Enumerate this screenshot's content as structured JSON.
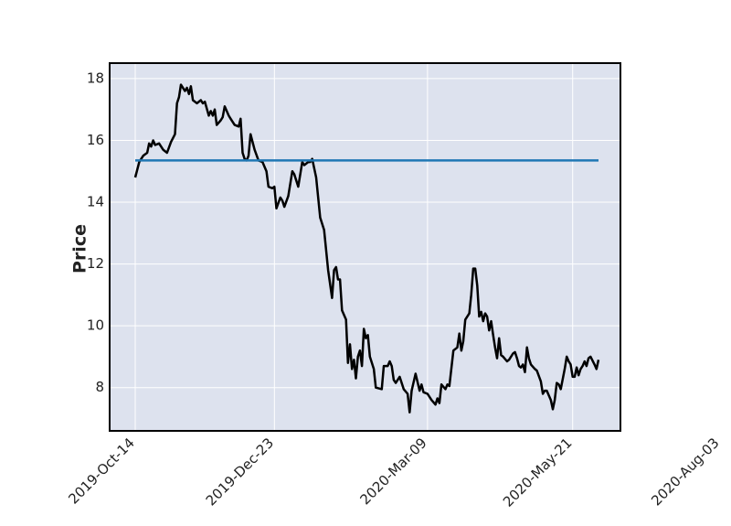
{
  "chart_data": {
    "type": "line",
    "title": "",
    "xlabel": "",
    "ylabel": "Price",
    "ylim": [
      6.6,
      18.5
    ],
    "y_ticks": [
      8,
      10,
      12,
      14,
      16,
      18
    ],
    "x_ticks": [
      "2019-Oct-14",
      "2019-Dec-23",
      "2020-Mar-09",
      "2020-May-21",
      "2020-Aug-03"
    ],
    "grid": true,
    "background_color": "#dde2ee",
    "series": [
      {
        "color": "#000000",
        "style": "solid",
        "points": [
          [
            "2019-Oct-14",
            14.8
          ],
          [
            "2019-Oct-16",
            15.3
          ],
          [
            "2019-Oct-18",
            15.5
          ],
          [
            "2019-Oct-20",
            15.6
          ],
          [
            "2019-Oct-21",
            15.9
          ],
          [
            "2019-Oct-22",
            15.8
          ],
          [
            "2019-Oct-23",
            16.0
          ],
          [
            "2019-Oct-24",
            15.85
          ],
          [
            "2019-Oct-26",
            15.9
          ],
          [
            "2019-Oct-28",
            15.7
          ],
          [
            "2019-Oct-30",
            15.6
          ],
          [
            "2019-Nov-01",
            15.95
          ],
          [
            "2019-Nov-03",
            16.2
          ],
          [
            "2019-Nov-04",
            17.2
          ],
          [
            "2019-Nov-05",
            17.4
          ],
          [
            "2019-Nov-06",
            17.8
          ],
          [
            "2019-Nov-08",
            17.6
          ],
          [
            "2019-Nov-09",
            17.7
          ],
          [
            "2019-Nov-10",
            17.5
          ],
          [
            "2019-Nov-11",
            17.75
          ],
          [
            "2019-Nov-12",
            17.3
          ],
          [
            "2019-Nov-14",
            17.2
          ],
          [
            "2019-Nov-16",
            17.3
          ],
          [
            "2019-Nov-17",
            17.2
          ],
          [
            "2019-Nov-18",
            17.25
          ],
          [
            "2019-Nov-20",
            16.8
          ],
          [
            "2019-Nov-21",
            16.95
          ],
          [
            "2019-Nov-22",
            16.8
          ],
          [
            "2019-Nov-23",
            17.0
          ],
          [
            "2019-Nov-24",
            16.5
          ],
          [
            "2019-Nov-26",
            16.65
          ],
          [
            "2019-Nov-27",
            16.75
          ],
          [
            "2019-Nov-28",
            17.1
          ],
          [
            "2019-Nov-30",
            16.8
          ],
          [
            "2019-Dec-01",
            16.7
          ],
          [
            "2019-Dec-03",
            16.5
          ],
          [
            "2019-Dec-05",
            16.45
          ],
          [
            "2019-Dec-06",
            16.7
          ],
          [
            "2019-Dec-07",
            15.6
          ],
          [
            "2019-Dec-08",
            15.4
          ],
          [
            "2019-Dec-09",
            15.35
          ],
          [
            "2019-Dec-10",
            15.5
          ],
          [
            "2019-Dec-11",
            16.2
          ],
          [
            "2019-Dec-13",
            15.7
          ],
          [
            "2019-Dec-15",
            15.35
          ],
          [
            "2019-Dec-17",
            15.3
          ],
          [
            "2019-Dec-19",
            15.0
          ],
          [
            "2019-Dec-20",
            14.5
          ],
          [
            "2019-Dec-22",
            14.45
          ],
          [
            "2019-Dec-23",
            14.5
          ],
          [
            "2019-Dec-24",
            13.8
          ],
          [
            "2019-Dec-26",
            14.15
          ],
          [
            "2019-Dec-27",
            14.05
          ],
          [
            "2019-Dec-28",
            13.85
          ],
          [
            "2019-Dec-30",
            14.2
          ],
          [
            "2020-Jan-01",
            15.0
          ],
          [
            "2020-Jan-02",
            14.9
          ],
          [
            "2020-Jan-04",
            14.5
          ],
          [
            "2020-Jan-06",
            15.3
          ],
          [
            "2020-Jan-07",
            15.2
          ],
          [
            "2020-Jan-09",
            15.3
          ],
          [
            "2020-Jan-10",
            15.3
          ],
          [
            "2020-Jan-11",
            15.4
          ],
          [
            "2020-Jan-13",
            14.8
          ],
          [
            "2020-Jan-15",
            13.5
          ],
          [
            "2020-Jan-17",
            13.1
          ],
          [
            "2020-Jan-19",
            11.8
          ],
          [
            "2020-Jan-21",
            10.9
          ],
          [
            "2020-Jan-22",
            11.8
          ],
          [
            "2020-Jan-23",
            11.9
          ],
          [
            "2020-Jan-24",
            11.5
          ],
          [
            "2020-Jan-25",
            11.5
          ],
          [
            "2020-Jan-26",
            10.5
          ],
          [
            "2020-Jan-28",
            10.2
          ],
          [
            "2020-Jan-29",
            8.8
          ],
          [
            "2020-Jan-30",
            9.4
          ],
          [
            "2020-Jan-31",
            8.6
          ],
          [
            "2020-Feb-01",
            8.9
          ],
          [
            "2020-Feb-02",
            8.3
          ],
          [
            "2020-Feb-03",
            9.0
          ],
          [
            "2020-Feb-04",
            9.2
          ],
          [
            "2020-Feb-05",
            8.7
          ],
          [
            "2020-Feb-06",
            9.9
          ],
          [
            "2020-Feb-07",
            9.6
          ],
          [
            "2020-Feb-08",
            9.7
          ],
          [
            "2020-Feb-09",
            9.0
          ],
          [
            "2020-Feb-11",
            8.6
          ],
          [
            "2020-Feb-12",
            8.0
          ],
          [
            "2020-Feb-15",
            7.95
          ],
          [
            "2020-Feb-16",
            8.7
          ],
          [
            "2020-Feb-18",
            8.7
          ],
          [
            "2020-Feb-19",
            8.85
          ],
          [
            "2020-Feb-20",
            8.7
          ],
          [
            "2020-Feb-21",
            8.25
          ],
          [
            "2020-Feb-22",
            8.15
          ],
          [
            "2020-Feb-24",
            8.35
          ],
          [
            "2020-Feb-26",
            7.95
          ],
          [
            "2020-Feb-28",
            7.8
          ],
          [
            "2020-Feb-29",
            7.2
          ],
          [
            "2020-Mar-01",
            7.9
          ],
          [
            "2020-Mar-03",
            8.45
          ],
          [
            "2020-Mar-05",
            7.9
          ],
          [
            "2020-Mar-06",
            8.1
          ],
          [
            "2020-Mar-07",
            7.85
          ],
          [
            "2020-Mar-09",
            7.8
          ],
          [
            "2020-Mar-11",
            7.6
          ],
          [
            "2020-Mar-13",
            7.45
          ],
          [
            "2020-Mar-14",
            7.65
          ],
          [
            "2020-Mar-15",
            7.5
          ],
          [
            "2020-Mar-16",
            8.1
          ],
          [
            "2020-Mar-18",
            7.95
          ],
          [
            "2020-Mar-19",
            8.1
          ],
          [
            "2020-Mar-20",
            8.05
          ],
          [
            "2020-Mar-22",
            9.2
          ],
          [
            "2020-Mar-24",
            9.3
          ],
          [
            "2020-Mar-25",
            9.75
          ],
          [
            "2020-Mar-26",
            9.2
          ],
          [
            "2020-Mar-27",
            9.5
          ],
          [
            "2020-Mar-28",
            10.2
          ],
          [
            "2020-Mar-30",
            10.4
          ],
          [
            "2020-Mar-31",
            11.0
          ],
          [
            "2020-Apr-01",
            11.85
          ],
          [
            "2020-Apr-02",
            11.85
          ],
          [
            "2020-Apr-03",
            11.3
          ],
          [
            "2020-Apr-04",
            10.3
          ],
          [
            "2020-Apr-05",
            10.45
          ],
          [
            "2020-Apr-06",
            10.15
          ],
          [
            "2020-Apr-07",
            10.4
          ],
          [
            "2020-Apr-08",
            10.3
          ],
          [
            "2020-Apr-09",
            9.85
          ],
          [
            "2020-Apr-10",
            10.15
          ],
          [
            "2020-Apr-11",
            9.7
          ],
          [
            "2020-Apr-12",
            9.3
          ],
          [
            "2020-Apr-13",
            8.95
          ],
          [
            "2020-Apr-14",
            9.6
          ],
          [
            "2020-Apr-15",
            9.05
          ],
          [
            "2020-Apr-16",
            9.0
          ],
          [
            "2020-Apr-18",
            8.85
          ],
          [
            "2020-Apr-19",
            8.9
          ],
          [
            "2020-Apr-21",
            9.1
          ],
          [
            "2020-Apr-22",
            9.15
          ],
          [
            "2020-Apr-23",
            8.95
          ],
          [
            "2020-Apr-24",
            8.7
          ],
          [
            "2020-Apr-25",
            8.65
          ],
          [
            "2020-Apr-26",
            8.75
          ],
          [
            "2020-Apr-27",
            8.5
          ],
          [
            "2020-Apr-28",
            9.3
          ],
          [
            "2020-Apr-29",
            8.95
          ],
          [
            "2020-Apr-30",
            8.75
          ],
          [
            "2020-May-02",
            8.6
          ],
          [
            "2020-May-03",
            8.55
          ],
          [
            "2020-May-05",
            8.2
          ],
          [
            "2020-May-06",
            7.8
          ],
          [
            "2020-May-07",
            7.9
          ],
          [
            "2020-May-08",
            7.9
          ],
          [
            "2020-May-10",
            7.6
          ],
          [
            "2020-May-11",
            7.3
          ],
          [
            "2020-May-12",
            7.6
          ],
          [
            "2020-May-13",
            8.15
          ],
          [
            "2020-May-14",
            8.1
          ],
          [
            "2020-May-15",
            7.95
          ],
          [
            "2020-May-17",
            8.6
          ],
          [
            "2020-May-18",
            9.0
          ],
          [
            "2020-May-19",
            8.85
          ],
          [
            "2020-May-20",
            8.75
          ],
          [
            "2020-May-21",
            8.35
          ],
          [
            "2020-May-22",
            8.35
          ],
          [
            "2020-May-23",
            8.65
          ],
          [
            "2020-May-24",
            8.4
          ],
          [
            "2020-May-25",
            8.6
          ],
          [
            "2020-May-26",
            8.7
          ],
          [
            "2020-May-27",
            8.85
          ],
          [
            "2020-May-28",
            8.7
          ],
          [
            "2020-May-29",
            8.95
          ],
          [
            "2020-May-30",
            9.0
          ],
          [
            "2020-Jun-01",
            8.75
          ],
          [
            "2020-Jun-02",
            8.6
          ],
          [
            "2020-Jun-03",
            8.9
          ]
        ]
      },
      {
        "color": "#1f77b4",
        "style": "solid",
        "points": [
          [
            "2019-Oct-14",
            15.35
          ],
          [
            "2020-Jun-03",
            15.35
          ]
        ]
      }
    ]
  }
}
